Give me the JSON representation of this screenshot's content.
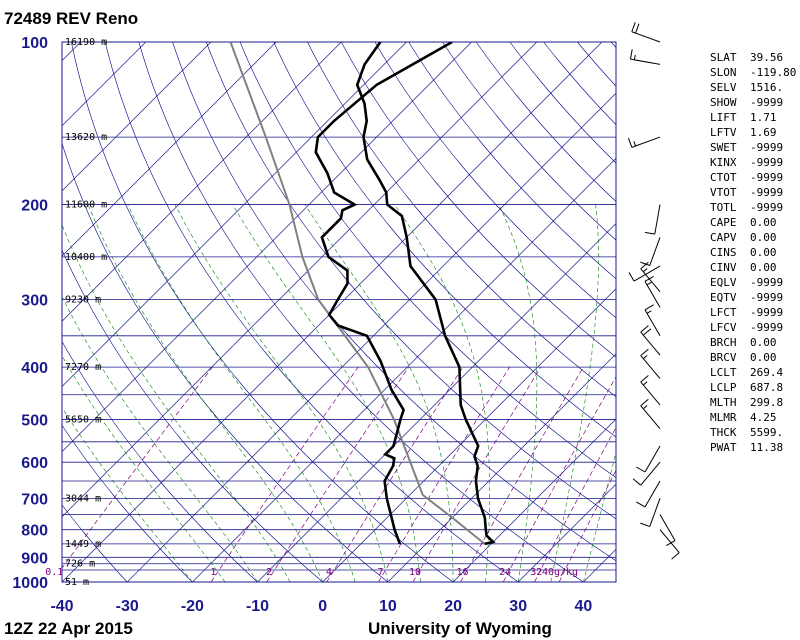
{
  "header": {
    "station_title": "72489 REV Reno"
  },
  "footer": {
    "time_label": "12Z 22 Apr 2015",
    "source_label": "University of Wyoming"
  },
  "colors": {
    "isobar": "#1a1a8c",
    "isotherm": "#1a1a8c",
    "dry_adiabat": "#00008b",
    "moist_adiabat": "#008000",
    "mixing_ratio": "#800080",
    "sounding": "#000000",
    "parcel": "#808080"
  },
  "heights": [
    {
      "p": 100,
      "label": "16190 m"
    },
    {
      "p": 150,
      "label": "13620 m"
    },
    {
      "p": 200,
      "label": "11600 m"
    },
    {
      "p": 250,
      "label": "10400 m"
    },
    {
      "p": 300,
      "label": "9230 m"
    },
    {
      "p": 400,
      "label": "7270 m"
    },
    {
      "p": 500,
      "label": "5650 m"
    },
    {
      "p": 700,
      "label": "3044 m"
    },
    {
      "p": 850,
      "label": "1449 m"
    },
    {
      "p": 925,
      "label": "726 m"
    },
    {
      "p": 1000,
      "label": "51 m"
    }
  ],
  "mixing_ratio_labels": [
    "0.1",
    "1",
    "2",
    "4",
    "7",
    "10",
    "16",
    "24",
    "32",
    "40g/kg"
  ],
  "indices": [
    {
      "key": "SLAT",
      "value": "39.56"
    },
    {
      "key": "SLON",
      "value": "-119.80"
    },
    {
      "key": "SELV",
      "value": "1516."
    },
    {
      "key": "SHOW",
      "value": "-9999"
    },
    {
      "key": "LIFT",
      "value": "1.71"
    },
    {
      "key": "LFTV",
      "value": "1.69"
    },
    {
      "key": "SWET",
      "value": "-9999"
    },
    {
      "key": "KINX",
      "value": "-9999"
    },
    {
      "key": "CTOT",
      "value": "-9999"
    },
    {
      "key": "VTOT",
      "value": "-9999"
    },
    {
      "key": "TOTL",
      "value": "-9999"
    },
    {
      "key": "CAPE",
      "value": "0.00"
    },
    {
      "key": "CAPV",
      "value": "0.00"
    },
    {
      "key": "CINS",
      "value": "0.00"
    },
    {
      "key": "CINV",
      "value": "0.00"
    },
    {
      "key": "EQLV",
      "value": "-9999"
    },
    {
      "key": "EQTV",
      "value": "-9999"
    },
    {
      "key": "LFCT",
      "value": "-9999"
    },
    {
      "key": "LFCV",
      "value": "-9999"
    },
    {
      "key": "BRCH",
      "value": "0.00"
    },
    {
      "key": "BRCV",
      "value": "0.00"
    },
    {
      "key": "LCLT",
      "value": "269.4"
    },
    {
      "key": "LCLP",
      "value": "687.8"
    },
    {
      "key": "MLTH",
      "value": "299.8"
    },
    {
      "key": "MLMR",
      "value": "4.25"
    },
    {
      "key": "THCK",
      "value": "5599."
    },
    {
      "key": "PWAT",
      "value": "11.38"
    }
  ],
  "chart_data": {
    "type": "skew-t log-p",
    "title": "72489 REV Reno",
    "xlabel": "",
    "ylabel": "",
    "xlim": [
      -40,
      45
    ],
    "ylim": [
      1000,
      100
    ],
    "yscale": "log",
    "pressure_ticks": [
      100,
      200,
      300,
      400,
      500,
      600,
      700,
      800,
      900,
      1000
    ],
    "temperature_ticks": [
      -40,
      -30,
      -20,
      -10,
      0,
      10,
      20,
      30,
      40
    ],
    "isobars": [
      100,
      150,
      200,
      250,
      300,
      350,
      400,
      450,
      500,
      550,
      600,
      650,
      700,
      750,
      800,
      850,
      900,
      925,
      950,
      1000
    ],
    "temperature_profile": [
      {
        "p": 850,
        "t": 19
      },
      {
        "p": 843,
        "t": 20
      },
      {
        "p": 820,
        "t": 18
      },
      {
        "p": 800,
        "t": 17
      },
      {
        "p": 780,
        "t": 16
      },
      {
        "p": 760,
        "t": 15
      },
      {
        "p": 700,
        "t": 11
      },
      {
        "p": 650,
        "t": 8
      },
      {
        "p": 610,
        "t": 6
      },
      {
        "p": 585,
        "t": 4
      },
      {
        "p": 560,
        "t": 3
      },
      {
        "p": 500,
        "t": -3
      },
      {
        "p": 470,
        "t": -6
      },
      {
        "p": 400,
        "t": -12
      },
      {
        "p": 350,
        "t": -19
      },
      {
        "p": 300,
        "t": -26
      },
      {
        "p": 260,
        "t": -35
      },
      {
        "p": 230,
        "t": -40
      },
      {
        "p": 210,
        "t": -44
      },
      {
        "p": 200,
        "t": -48
      },
      {
        "p": 195,
        "t": -49
      },
      {
        "p": 190,
        "t": -50
      },
      {
        "p": 180,
        "t": -53
      },
      {
        "p": 165,
        "t": -58
      },
      {
        "p": 150,
        "t": -62
      },
      {
        "p": 140,
        "t": -64
      },
      {
        "p": 130,
        "t": -67
      },
      {
        "p": 120,
        "t": -71
      },
      {
        "p": 110,
        "t": -73
      },
      {
        "p": 100,
        "t": -74
      }
    ],
    "dewpoint_profile": [
      {
        "p": 850,
        "t": 6
      },
      {
        "p": 800,
        "t": 3
      },
      {
        "p": 700,
        "t": -3
      },
      {
        "p": 650,
        "t": -6
      },
      {
        "p": 610,
        "t": -7
      },
      {
        "p": 590,
        "t": -8
      },
      {
        "p": 580,
        "t": -10
      },
      {
        "p": 560,
        "t": -10
      },
      {
        "p": 500,
        "t": -13
      },
      {
        "p": 480,
        "t": -14
      },
      {
        "p": 440,
        "t": -19
      },
      {
        "p": 390,
        "t": -25
      },
      {
        "p": 350,
        "t": -31
      },
      {
        "p": 335,
        "t": -37
      },
      {
        "p": 320,
        "t": -40
      },
      {
        "p": 300,
        "t": -41
      },
      {
        "p": 280,
        "t": -42
      },
      {
        "p": 265,
        "t": -44
      },
      {
        "p": 250,
        "t": -49
      },
      {
        "p": 230,
        "t": -53
      },
      {
        "p": 212,
        "t": -53
      },
      {
        "p": 205,
        "t": -54
      },
      {
        "p": 200,
        "t": -53
      },
      {
        "p": 190,
        "t": -58
      },
      {
        "p": 175,
        "t": -62
      },
      {
        "p": 160,
        "t": -67
      },
      {
        "p": 150,
        "t": -69
      },
      {
        "p": 140,
        "t": -69
      },
      {
        "p": 120,
        "t": -68
      },
      {
        "p": 100,
        "t": -63
      }
    ],
    "parcel_path": [
      {
        "p": 850,
        "t": 19
      },
      {
        "p": 760,
        "t": 10
      },
      {
        "p": 690,
        "t": 2
      },
      {
        "p": 500,
        "t": -14
      },
      {
        "p": 400,
        "t": -26
      },
      {
        "p": 300,
        "t": -44
      },
      {
        "p": 250,
        "t": -53
      },
      {
        "p": 200,
        "t": -63
      },
      {
        "p": 150,
        "t": -77
      },
      {
        "p": 100,
        "t": -97
      }
    ],
    "wind_barbs": [
      {
        "p": 100,
        "dir": 290,
        "kt": 20
      },
      {
        "p": 110,
        "dir": 280,
        "kt": 15
      },
      {
        "p": 150,
        "dir": 250,
        "kt": 15
      },
      {
        "p": 200,
        "dir": 190,
        "kt": 10
      },
      {
        "p": 230,
        "dir": 200,
        "kt": 10
      },
      {
        "p": 260,
        "dir": 240,
        "kt": 10
      },
      {
        "p": 290,
        "dir": 320,
        "kt": 15
      },
      {
        "p": 310,
        "dir": 330,
        "kt": 15
      },
      {
        "p": 350,
        "dir": 330,
        "kt": 15
      },
      {
        "p": 380,
        "dir": 320,
        "kt": 20
      },
      {
        "p": 420,
        "dir": 320,
        "kt": 15
      },
      {
        "p": 470,
        "dir": 320,
        "kt": 15
      },
      {
        "p": 520,
        "dir": 320,
        "kt": 15
      },
      {
        "p": 560,
        "dir": 210,
        "kt": 10
      },
      {
        "p": 600,
        "dir": 220,
        "kt": 10
      },
      {
        "p": 650,
        "dir": 210,
        "kt": 10
      },
      {
        "p": 700,
        "dir": 200,
        "kt": 10
      },
      {
        "p": 750,
        "dir": 150,
        "kt": 10
      },
      {
        "p": 800,
        "dir": 140,
        "kt": 10
      }
    ]
  }
}
